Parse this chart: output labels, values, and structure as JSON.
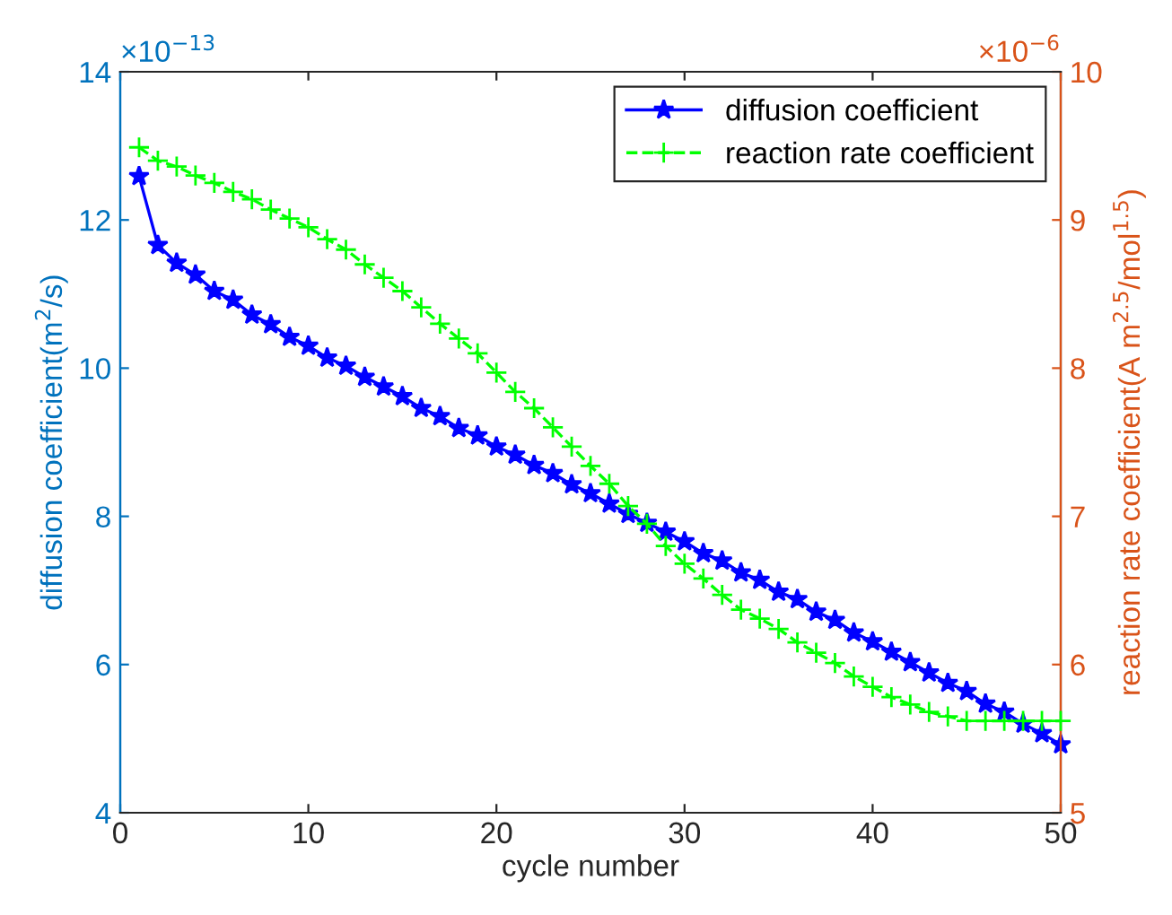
{
  "chart_data": {
    "type": "line",
    "xlabel": "cycle number",
    "ylabel": "diffusion coefficient(m$^{2}$/s)",
    "y2label": "reaction rate coefficient(A m$^{2.5}$/mol$^{1.5}$)",
    "x": [
      1,
      2,
      3,
      4,
      5,
      6,
      7,
      8,
      9,
      10,
      11,
      12,
      13,
      14,
      15,
      16,
      17,
      18,
      19,
      20,
      21,
      22,
      23,
      24,
      25,
      26,
      27,
      28,
      29,
      30,
      31,
      32,
      33,
      34,
      35,
      36,
      37,
      38,
      39,
      40,
      41,
      42,
      43,
      44,
      45,
      46,
      47,
      48,
      49,
      50
    ],
    "series": [
      {
        "name": "diffusion coefficient",
        "color": "#0000ff",
        "marker": "star",
        "line_style": "solid",
        "values": [
          12.59,
          11.66,
          11.42,
          11.26,
          11.04,
          10.92,
          10.72,
          10.59,
          10.42,
          10.3,
          10.14,
          10.03,
          9.88,
          9.75,
          9.62,
          9.46,
          9.35,
          9.19,
          9.09,
          8.94,
          8.83,
          8.69,
          8.58,
          8.43,
          8.31,
          8.17,
          8.03,
          7.91,
          7.79,
          7.66,
          7.5,
          7.4,
          7.24,
          7.14,
          6.98,
          6.88,
          6.71,
          6.6,
          6.43,
          6.31,
          6.17,
          6.03,
          5.89,
          5.75,
          5.64,
          5.47,
          5.36,
          5.2,
          5.07,
          4.92
        ]
      },
      {
        "name": "reaction rate coefficient",
        "color": "#00ff00",
        "marker": "cross",
        "line_style": "dashed",
        "axis": "y2",
        "values": [
          9.49,
          9.4,
          9.36,
          9.3,
          9.25,
          9.19,
          9.14,
          9.07,
          9.01,
          8.95,
          8.87,
          8.8,
          8.7,
          8.61,
          8.52,
          8.41,
          8.3,
          8.2,
          8.1,
          7.97,
          7.84,
          7.73,
          7.6,
          7.47,
          7.34,
          7.22,
          7.07,
          6.95,
          6.8,
          6.68,
          6.58,
          6.47,
          6.37,
          6.31,
          6.24,
          6.15,
          6.08,
          6.01,
          5.92,
          5.85,
          5.78,
          5.73,
          5.68,
          5.65,
          5.62,
          5.62,
          5.62,
          5.62,
          5.62,
          5.62
        ]
      }
    ],
    "xlim": [
      0,
      50
    ],
    "xticks": [
      0,
      10,
      20,
      30,
      40,
      50
    ],
    "ylim": [
      4,
      14
    ],
    "yticks": [
      4,
      6,
      8,
      10,
      12,
      14
    ],
    "y2lim": [
      5,
      10
    ],
    "y2ticks": [
      5,
      6,
      7,
      8,
      9,
      10
    ],
    "annotations": [
      "×10$^{−13}$",
      "×10$^{−6}$"
    ],
    "legend": "top right",
    "grid": false
  }
}
